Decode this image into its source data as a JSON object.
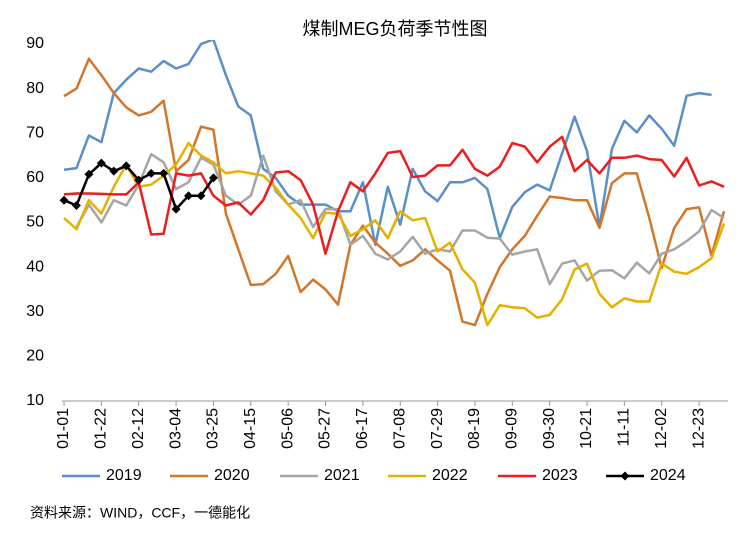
{
  "chart_data": {
    "type": "line",
    "title": "煤制MEG负荷季节性图",
    "source": "资料来源：WIND，CCF，一德能化",
    "categories": [
      "01-01",
      null,
      null,
      "01-22",
      null,
      null,
      "02-12",
      null,
      null,
      "03-04",
      null,
      null,
      "03-25",
      null,
      null,
      "04-15",
      null,
      null,
      "05-06",
      null,
      null,
      "05-27",
      null,
      null,
      "06-17",
      null,
      null,
      "07-08",
      null,
      null,
      "07-29",
      null,
      null,
      "08-19",
      null,
      null,
      "09-09",
      null,
      null,
      "09-30",
      null,
      null,
      "10-21",
      null,
      null,
      "11-11",
      null,
      null,
      "12-02",
      null,
      null,
      "12-23",
      null,
      null
    ],
    "ylim": [
      10,
      90
    ],
    "yticks": [
      10,
      20,
      30,
      40,
      50,
      60,
      70,
      80,
      90
    ],
    "grid": false,
    "legend": "bottom",
    "series": [
      {
        "name": "2019",
        "color": "#5b8fc7",
        "values": [
          61.8,
          62.2,
          69.5,
          68,
          79,
          82,
          84.5,
          83.8,
          86.2,
          84.5,
          85.5,
          90,
          91,
          83,
          76,
          74,
          62,
          60,
          56,
          54,
          54,
          54,
          52.5,
          52.5,
          59,
          45,
          58,
          49.5,
          62,
          57,
          54.8,
          59,
          59,
          60,
          57.5,
          46.5,
          53.5,
          56.8,
          58.5,
          57.2,
          65.5,
          73.7,
          66,
          49,
          66.5,
          72.8,
          70.2,
          74,
          71,
          67.2,
          78.4,
          79,
          78.6,
          null
        ]
      },
      {
        "name": "2020",
        "color": "#d2762b",
        "values": [
          78.3,
          80,
          86.7,
          83,
          79,
          75.8,
          74,
          74.8,
          77.3,
          61.5,
          64,
          71.5,
          70.8,
          52,
          44,
          36,
          36.2,
          38.5,
          42.5,
          34.4,
          37.2,
          35,
          31.6,
          45,
          49.3,
          45.5,
          43,
          40.3,
          41.5,
          44,
          41.5,
          39.2,
          27.8,
          27,
          34,
          40,
          44,
          47,
          51.5,
          55.8,
          55.5,
          55,
          55,
          48.8,
          58.8,
          61,
          61,
          51,
          39.8,
          48.8,
          53,
          53.4,
          42.6,
          52.5
        ]
      },
      {
        "name": "2021",
        "color": "#a5a5a5",
        "values": [
          null,
          49,
          54,
          50,
          55,
          53.8,
          58.5,
          65.3,
          63.5,
          57.5,
          59,
          64.5,
          63,
          56,
          54,
          56,
          65,
          57,
          54,
          55,
          49,
          53,
          53,
          45,
          47,
          43,
          41.7,
          43.5,
          46.8,
          43,
          44,
          43.5,
          48.2,
          48.2,
          46.6,
          46.4,
          42.8,
          43.5,
          44,
          36.2,
          40.8,
          41.5,
          37,
          39.2,
          39.3,
          37.5,
          41,
          38.6,
          43,
          44,
          45.8,
          48,
          52.8,
          51
        ]
      },
      {
        "name": "2022",
        "color": "#e6b000",
        "values": [
          51,
          48.5,
          55,
          52,
          58,
          63,
          58,
          58.5,
          60.5,
          63,
          67.8,
          65,
          63.5,
          61,
          61.5,
          61,
          60.5,
          57.8,
          54,
          51,
          46.5,
          52.2,
          52,
          47,
          48.5,
          50.5,
          46.5,
          52.5,
          50.5,
          51,
          43.5,
          45.5,
          39.5,
          36.5,
          27,
          31.5,
          31,
          30.8,
          28.7,
          29.3,
          32.8,
          39.5,
          40.8,
          34,
          31,
          33,
          32.3,
          32.3,
          40.8,
          39,
          38.5,
          40,
          42,
          49.8
        ]
      },
      {
        "name": "2023",
        "color": "#ee1c1c",
        "values": [
          56.3,
          56.5,
          56.5,
          56.4,
          56.3,
          56.3,
          59,
          47.3,
          47.5,
          61,
          60.5,
          61,
          56,
          53.8,
          54.5,
          51.8,
          55,
          61.2,
          61.5,
          59.5,
          54,
          43,
          52.5,
          59,
          57,
          61,
          65.6,
          66,
          60.2,
          60.5,
          62.8,
          62.8,
          66.3,
          62,
          60.5,
          62.5,
          67.8,
          67,
          63.5,
          67,
          69.2,
          61.5,
          64,
          61,
          64.5,
          64.5,
          65,
          64.2,
          64,
          60.3,
          64.5,
          58.3,
          59.2,
          58
        ]
      },
      {
        "name": "2024",
        "color": "#000000",
        "marker": "diamond",
        "values": [
          55,
          53.8,
          60.8,
          63.3,
          61.5,
          62.7,
          59.5,
          61,
          61,
          53,
          56,
          56,
          60,
          null,
          null,
          null,
          null,
          null,
          null,
          null,
          null,
          null,
          null,
          null,
          null,
          null,
          null,
          null,
          null,
          null,
          null,
          null,
          null,
          null,
          null,
          null,
          null,
          null,
          null,
          null,
          null,
          null,
          null,
          null,
          null,
          null,
          null,
          null,
          null,
          null,
          null,
          null,
          null,
          null
        ]
      }
    ]
  }
}
